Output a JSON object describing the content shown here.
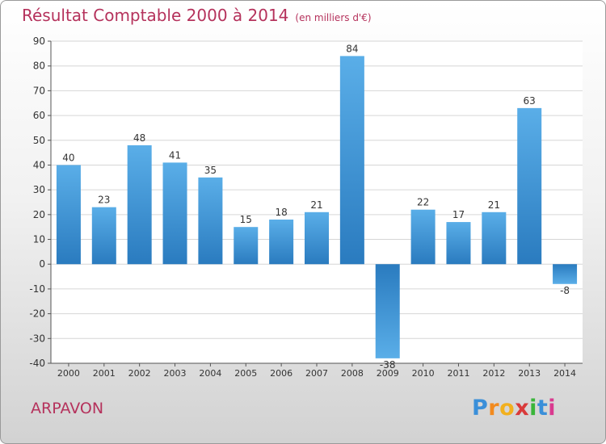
{
  "page": {
    "title": "Résultat Comptable 2000 à 2014",
    "unit": "(en milliers d'€)",
    "commune": "ARPAVON",
    "logo_letters": [
      "P",
      "r",
      "o",
      "x",
      "i",
      "t",
      "i"
    ],
    "logo_colors": [
      "#3a8fd9",
      "#f28a1e",
      "#f2b01e",
      "#d93a3a",
      "#3ab53a",
      "#3a8fd9",
      "#d93a8f"
    ]
  },
  "colors": {
    "title": "#b5325c",
    "bar_light": "#5aaee8",
    "bar_dark": "#2a7bbf",
    "grid": "#d6d6d6"
  },
  "chart_data": {
    "type": "bar",
    "title": "Résultat Comptable 2000 à 2014",
    "subtitle": "(en milliers d'€)",
    "categories": [
      "2000",
      "2001",
      "2002",
      "2003",
      "2004",
      "2005",
      "2006",
      "2007",
      "2008",
      "2009",
      "2010",
      "2011",
      "2012",
      "2013",
      "2014"
    ],
    "values": [
      40,
      23,
      48,
      41,
      35,
      15,
      18,
      21,
      84,
      -38,
      22,
      17,
      21,
      63,
      -8
    ],
    "ylim": [
      -40,
      90
    ],
    "yticks": [
      90,
      80,
      70,
      60,
      50,
      40,
      30,
      20,
      10,
      0,
      -10,
      -20,
      -30,
      -40
    ],
    "grid": true
  }
}
